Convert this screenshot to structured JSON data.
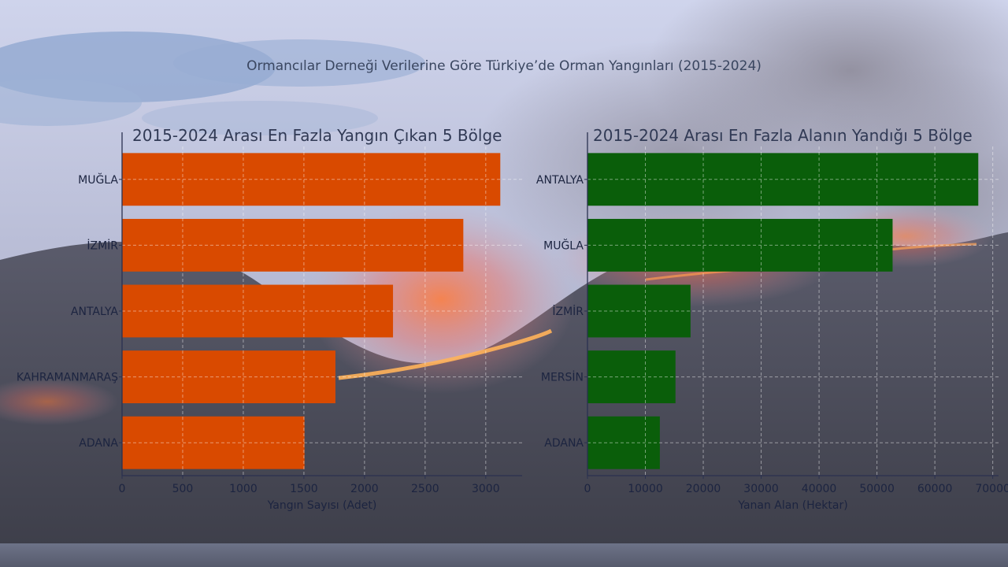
{
  "page": {
    "title": "Ormancılar Derneği Verilerine Göre Türkiye’de Orman Yangınları (2015-2024)"
  },
  "chart_data": [
    {
      "type": "bar",
      "orientation": "horizontal",
      "title": "2015-2024 Arası En Fazla Yangın Çıkan 5 Bölge",
      "xlabel": "Yangın Sayısı (Adet)",
      "ylabel": "",
      "categories": [
        "MUĞLA",
        "İZMİR",
        "ANTALYA",
        "KAHRAMANMARAŞ",
        "ADANA"
      ],
      "values": [
        3120,
        2815,
        2235,
        1760,
        1505
      ],
      "xlim": [
        0,
        3300
      ],
      "xticks": [
        0,
        500,
        1000,
        1500,
        2000,
        2500,
        3000
      ],
      "color": "#d94a00",
      "grid": true
    },
    {
      "type": "bar",
      "orientation": "horizontal",
      "title": "2015-2024 Arası En Fazla Alanın Yandığı 5 Bölge",
      "xlabel": "Yanan Alan (Hektar)",
      "ylabel": "",
      "categories": [
        "ANTALYA",
        "MUĞLA",
        "İZMİR",
        "MERSİN",
        "ADANA"
      ],
      "values": [
        67500,
        52700,
        17800,
        15200,
        12500
      ],
      "xlim": [
        0,
        71000
      ],
      "xticks": [
        0,
        10000,
        20000,
        30000,
        40000,
        50000,
        60000,
        70000
      ],
      "color": "#0a5e0a",
      "grid": true
    }
  ]
}
